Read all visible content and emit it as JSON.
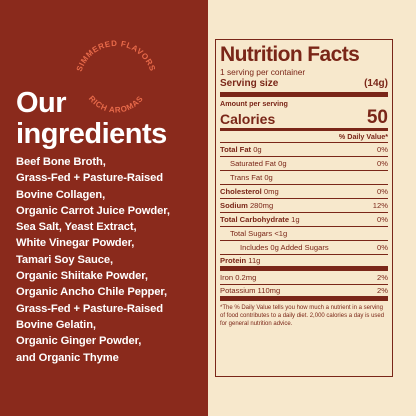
{
  "badge": {
    "line1": "SIMMERED FLAVORS",
    "line2": "RICH AROMAS"
  },
  "heading": {
    "line1": "Our",
    "line2": "ingredients"
  },
  "ingredients": [
    "Beef Bone Broth,",
    "Grass-Fed + Pasture-Raised",
    "Bovine Collagen,",
    "Organic Carrot Juice Powder,",
    "Sea Salt, Yeast Extract,",
    "White Vinegar Powder,",
    "Tamari Soy Sauce,",
    "Organic Shiitake Powder,",
    "Organic Ancho Chile Pepper,",
    "Grass-Fed + Pasture-Raised",
    "Bovine Gelatin,",
    "Organic Ginger Powder,",
    "and Organic Thyme"
  ],
  "nutrition": {
    "title": "Nutrition Facts",
    "servings_per_container": "1 serving per container",
    "serving_size_label": "Serving size",
    "serving_size_value": "(14g)",
    "amount_per_serving": "Amount per serving",
    "calories_label": "Calories",
    "calories_value": "50",
    "daily_value_header": "% Daily Value*",
    "rows": [
      {
        "bold": "Total Fat",
        "amount": " 0g",
        "dv": "0%"
      },
      {
        "bold": "",
        "amount": "Saturated Fat 0g",
        "dv": "0%"
      },
      {
        "bold": "",
        "amount": "Trans Fat 0g",
        "dv": ""
      },
      {
        "bold": "Cholesterol",
        "amount": " 0mg",
        "dv": "0%"
      },
      {
        "bold": "Sodium",
        "amount": " 280mg",
        "dv": "12%"
      },
      {
        "bold": "Total Carbohydrate",
        "amount": " 1g",
        "dv": "0%"
      },
      {
        "bold": "",
        "amount": "Total Sugars <1g",
        "dv": ""
      },
      {
        "bold": "",
        "amount": "Includes 0g Added Sugars",
        "dv": "0%"
      },
      {
        "bold": "Protein",
        "amount": " 11g",
        "dv": ""
      },
      {
        "bold": "",
        "amount": "Iron 0.2mg",
        "dv": "2%"
      },
      {
        "bold": "",
        "amount": "Potassium 110mg",
        "dv": "2%"
      }
    ],
    "footnote": "*The % Daily Value tells you how much a nutrient in a serving of food contributes to a daily diet. 2,000 calories a day is used for general nutrition advice."
  },
  "colors": {
    "left_bg": "#8a2a1c",
    "right_bg": "#f7e8cc",
    "label_ink": "#7a2618",
    "badge": "#e86a4a"
  }
}
